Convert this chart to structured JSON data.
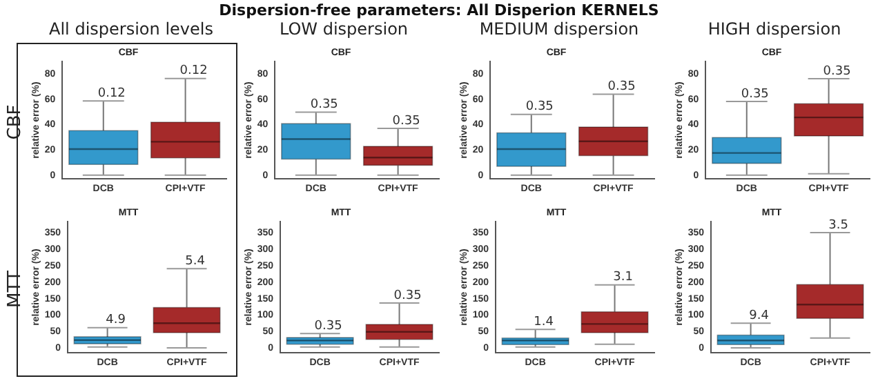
{
  "chart_data": [
    {
      "type": "box",
      "title": "CBF",
      "subtitle": "All dispersion levels",
      "ylabel": "relative error (%)",
      "categories": [
        "DCB",
        "CPI+VTF"
      ],
      "colors": [
        "#3399cc",
        "#a52a2a"
      ],
      "ylim": [
        -3,
        90
      ],
      "yticks": [
        0,
        20,
        40,
        60,
        80
      ],
      "grid": false,
      "boxes": [
        {
          "low": 0,
          "q1": 8.4,
          "median": 20.6,
          "q3": 35.2,
          "high": 58.6
        },
        {
          "low": 0,
          "q1": 13.6,
          "median": 26.4,
          "q3": 41.9,
          "high": 76.4
        }
      ],
      "annotations": [
        "Dispersion-free parameters: All Disperion KERNELS",
        "CBF",
        {
          "text": "0.12",
          "x": "DCB",
          "y": 58.6
        },
        {
          "text": "0.12",
          "x": "CPI+VTF",
          "y": 76.4
        }
      ]
    },
    {
      "type": "box",
      "title": "CBF",
      "subtitle": "LOW dispersion",
      "ylabel": "relative error (%)",
      "categories": [
        "DCB",
        "CPI+VTF"
      ],
      "colors": [
        "#3399cc",
        "#a52a2a"
      ],
      "ylim": [
        -3,
        90
      ],
      "yticks": [
        0,
        20,
        40,
        60,
        80
      ],
      "grid": false,
      "boxes": [
        {
          "low": 0,
          "q1": 12.7,
          "median": 28.5,
          "q3": 40.7,
          "high": 49.8
        },
        {
          "low": 0,
          "q1": 7.8,
          "median": 13.9,
          "q3": 22.7,
          "high": 37
        }
      ],
      "annotations": [
        {
          "text": "0.35",
          "x": "DCB",
          "y": 49.8
        },
        {
          "text": "0.35",
          "x": "CPI+VTF",
          "y": 37
        }
      ]
    },
    {
      "type": "box",
      "title": "CBF",
      "subtitle": "MEDIUM dispersion",
      "ylabel": "relative error (%)",
      "categories": [
        "DCB",
        "CPI+VTF"
      ],
      "colors": [
        "#3399cc",
        "#a52a2a"
      ],
      "ylim": [
        -3,
        90
      ],
      "yticks": [
        0,
        20,
        40,
        60,
        80
      ],
      "grid": false,
      "boxes": [
        {
          "low": 0,
          "q1": 6.9,
          "median": 20.6,
          "q3": 33.4,
          "high": 48
        },
        {
          "low": 0,
          "q1": 15.4,
          "median": 26.7,
          "q3": 38,
          "high": 63.9
        }
      ],
      "annotations": [
        {
          "text": "0.35",
          "x": "DCB",
          "y": 48
        },
        {
          "text": "0.35",
          "x": "CPI+VTF",
          "y": 63.9
        }
      ]
    },
    {
      "type": "box",
      "title": "CBF",
      "subtitle": "HIGH dispersion",
      "ylabel": "relative error (%)",
      "categories": [
        "DCB",
        "CPI+VTF"
      ],
      "colors": [
        "#3399cc",
        "#a52a2a"
      ],
      "ylim": [
        -3,
        90
      ],
      "yticks": [
        0,
        20,
        40,
        60,
        80
      ],
      "grid": false,
      "boxes": [
        {
          "low": 0,
          "q1": 9.3,
          "median": 17.5,
          "q3": 29.7,
          "high": 58.3
        },
        {
          "low": 1,
          "q1": 31,
          "median": 45.6,
          "q3": 56.5,
          "high": 76.3
        }
      ],
      "annotations": [
        {
          "text": "0.35",
          "x": "DCB",
          "y": 58.3
        },
        {
          "text": "0.35",
          "x": "CPI+VTF",
          "y": 76.3
        }
      ]
    },
    {
      "type": "box",
      "title": "MTT",
      "ylabel": "relative error (%)",
      "categories": [
        "DCB",
        "CPI+VTF"
      ],
      "colors": [
        "#3399cc",
        "#a52a2a"
      ],
      "ylim": [
        -15,
        385
      ],
      "yticks": [
        0,
        50,
        100,
        150,
        200,
        250,
        300,
        350
      ],
      "grid": false,
      "boxes": [
        {
          "low": 2.5,
          "q1": 12.5,
          "median": 23.8,
          "q3": 33.9,
          "high": 61.5
        },
        {
          "low": 0,
          "q1": 46.4,
          "median": 75.3,
          "q3": 123,
          "high": 241
        }
      ],
      "annotations": [
        "MTT",
        {
          "text": "4.9",
          "x": "DCB",
          "y": 61.5
        },
        {
          "text": "5.4",
          "x": "CPI+VTF",
          "y": 241
        }
      ]
    },
    {
      "type": "box",
      "title": "MTT",
      "ylabel": "relative error (%)",
      "categories": [
        "DCB",
        "CPI+VTF"
      ],
      "colors": [
        "#3399cc",
        "#a52a2a"
      ],
      "ylim": [
        -15,
        385
      ],
      "yticks": [
        0,
        50,
        100,
        150,
        200,
        250,
        300,
        350
      ],
      "grid": false,
      "boxes": [
        {
          "low": 2.5,
          "q1": 11.3,
          "median": 22.6,
          "q3": 31.4,
          "high": 43.9
        },
        {
          "low": 2.5,
          "q1": 26,
          "median": 49,
          "q3": 71.5,
          "high": 136.8
        }
      ],
      "annotations": [
        {
          "text": "0.35",
          "x": "DCB",
          "y": 43.9
        },
        {
          "text": "0.35",
          "x": "CPI+VTF",
          "y": 136.8
        }
      ]
    },
    {
      "type": "box",
      "title": "MTT",
      "ylabel": "relative error (%)",
      "categories": [
        "DCB",
        "CPI+VTF"
      ],
      "colors": [
        "#3399cc",
        "#a52a2a"
      ],
      "ylim": [
        -15,
        385
      ],
      "yticks": [
        0,
        50,
        100,
        150,
        200,
        250,
        300,
        350
      ],
      "grid": false,
      "boxes": [
        {
          "low": 2.5,
          "q1": 10,
          "median": 22.6,
          "q3": 30,
          "high": 56.5
        },
        {
          "low": 11.3,
          "q1": 46.4,
          "median": 72.8,
          "q3": 110,
          "high": 192
        }
      ],
      "annotations": [
        {
          "text": "1.4",
          "x": "DCB",
          "y": 56.5
        },
        {
          "text": "3.1",
          "x": "CPI+VTF",
          "y": 192
        }
      ]
    },
    {
      "type": "box",
      "title": "MTT",
      "ylabel": "relative error (%)",
      "categories": [
        "DCB",
        "CPI+VTF"
      ],
      "colors": [
        "#3399cc",
        "#a52a2a"
      ],
      "ylim": [
        -15,
        385
      ],
      "yticks": [
        0,
        50,
        100,
        150,
        200,
        250,
        300,
        350
      ],
      "grid": false,
      "boxes": [
        {
          "low": 0,
          "q1": 10,
          "median": 22.6,
          "q3": 39,
          "high": 75
        },
        {
          "low": 30,
          "q1": 90,
          "median": 132,
          "q3": 193,
          "high": 351
        }
      ],
      "annotations": [
        {
          "text": "9.4",
          "x": "DCB",
          "y": 75
        },
        {
          "text": "3.5",
          "x": "CPI+VTF",
          "y": 351
        }
      ]
    }
  ]
}
